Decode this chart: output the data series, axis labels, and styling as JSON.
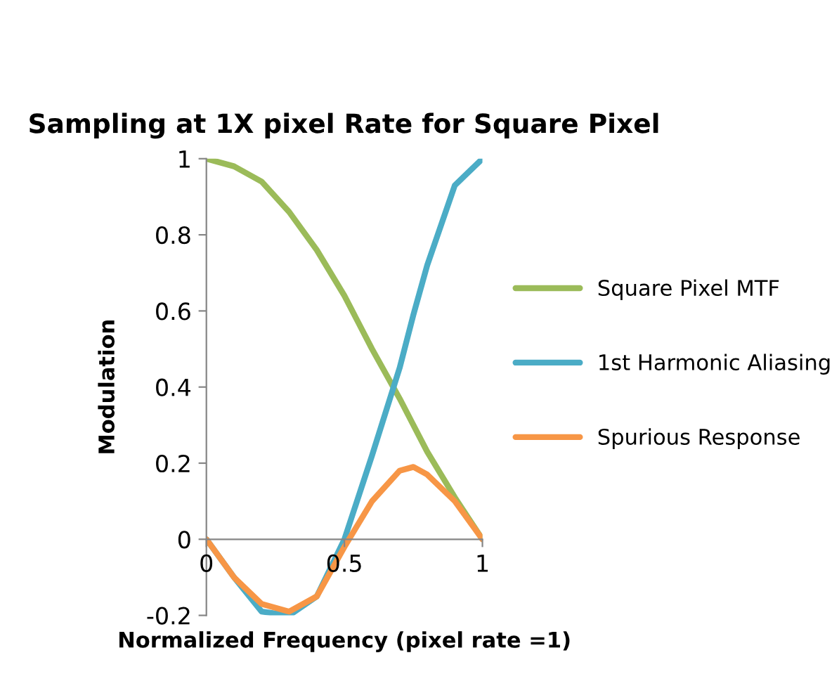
{
  "chart_data": {
    "type": "line",
    "title": "Sampling at 1X pixel Rate for Square Pixel",
    "xlabel": "Normalized Frequency (pixel rate =1)",
    "ylabel": "Modulation",
    "x": [
      0,
      0.1,
      0.2,
      0.3,
      0.4,
      0.5,
      0.6,
      0.7,
      0.75,
      0.8,
      0.9,
      1
    ],
    "series": [
      {
        "name": "Square Pixel MTF",
        "color": "#9bbb59",
        "values": [
          1,
          0.98,
          0.94,
          0.86,
          0.76,
          0.64,
          0.5,
          0.37,
          0.3,
          0.23,
          0.11,
          0
        ]
      },
      {
        "name": "1st Harmonic Aliasing",
        "color": "#4bacc6",
        "values": [
          0,
          -0.1,
          -0.19,
          -0.2,
          -0.15,
          0,
          0.22,
          0.45,
          0.59,
          0.72,
          0.93,
          1
        ]
      },
      {
        "name": "Spurious Response",
        "color": "#f79646",
        "values": [
          0,
          -0.1,
          -0.17,
          -0.19,
          -0.15,
          -0.02,
          0.1,
          0.18,
          0.19,
          0.17,
          0.1,
          0
        ]
      }
    ],
    "xlim": [
      0,
      1
    ],
    "xticks": [
      0,
      0.5,
      1
    ],
    "ylim": [
      -0.2,
      1
    ],
    "yticks": [
      -0.2,
      0,
      0.2,
      0.4,
      0.6,
      0.8,
      1
    ],
    "grid": false,
    "legend": "right",
    "marker": "none",
    "line_style": "solid"
  }
}
